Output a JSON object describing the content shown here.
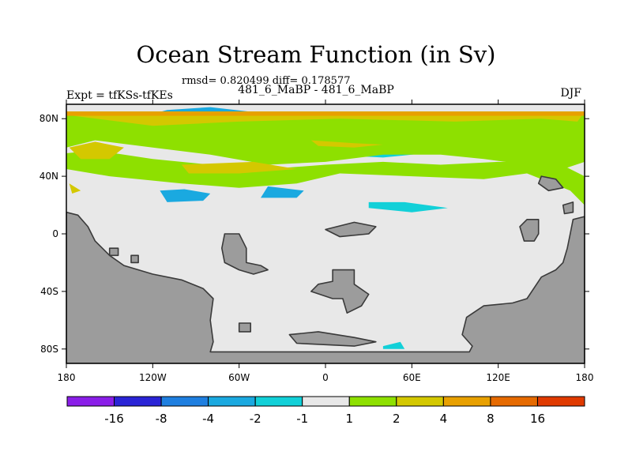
{
  "chart_data": {
    "type": "heatmap",
    "title": "Ocean Stream Function (in Sv)",
    "stats": "rmsd= 0.820499 diff= 0.178577",
    "subtitle": "481_6_MaBP - 481_6_MaBP",
    "left_label": "Expt = tfKSs-tfKEs",
    "right_label": "DJF",
    "x_ticks": [
      {
        "value": -180,
        "label": "180"
      },
      {
        "value": -120,
        "label": "120W"
      },
      {
        "value": -60,
        "label": "60W"
      },
      {
        "value": 0,
        "label": "0"
      },
      {
        "value": 60,
        "label": "60E"
      },
      {
        "value": 120,
        "label": "120E"
      },
      {
        "value": 180,
        "label": "180"
      }
    ],
    "y_ticks": [
      {
        "value": 80,
        "label": "80N"
      },
      {
        "value": 40,
        "label": "40N"
      },
      {
        "value": 0,
        "label": "0"
      },
      {
        "value": -40,
        "label": "40S"
      },
      {
        "value": -80,
        "label": "80S"
      }
    ],
    "xlim": [
      -180,
      180
    ],
    "ylim": [
      -90,
      90
    ],
    "colorbar": {
      "boundaries": [
        "-16",
        "-8",
        "-4",
        "-2",
        "-1",
        "1",
        "2",
        "4",
        "8",
        "16"
      ],
      "colors": [
        "#8a1ee8",
        "#2a24d6",
        "#1f7fe0",
        "#1aa9e0",
        "#12d0d8",
        "#e8e8e8",
        "#8ee000",
        "#d4c800",
        "#e8a000",
        "#e66a00",
        "#e03a00"
      ]
    },
    "fields": [
      {
        "level": "-4",
        "polygons": [
          [
            [
              -125,
              82
            ],
            [
              -110,
              86
            ],
            [
              -80,
              88
            ],
            [
              -45,
              84
            ],
            [
              -40,
              78
            ],
            [
              -60,
              72
            ],
            [
              -95,
              70
            ],
            [
              -118,
              74
            ]
          ],
          [
            [
              -115,
              30
            ],
            [
              -98,
              31
            ],
            [
              -80,
              28
            ],
            [
              -85,
              23
            ],
            [
              -110,
              22
            ]
          ],
          [
            [
              -40,
              33
            ],
            [
              -15,
              30
            ],
            [
              -20,
              25
            ],
            [
              -45,
              25
            ]
          ]
        ]
      },
      {
        "level": "-2",
        "polygons": [
          [
            [
              -75,
              60
            ],
            [
              -20,
              56
            ],
            [
              40,
              53
            ],
            [
              60,
              55
            ],
            [
              90,
              58
            ],
            [
              120,
              60
            ],
            [
              100,
              63
            ],
            [
              60,
              68
            ],
            [
              20,
              70
            ],
            [
              -20,
              72
            ],
            [
              -60,
              68
            ]
          ],
          [
            [
              -55,
              43
            ],
            [
              -25,
              42
            ],
            [
              -10,
              38
            ],
            [
              -45,
              36
            ]
          ],
          [
            [
              30,
              22
            ],
            [
              55,
              22
            ],
            [
              85,
              18
            ],
            [
              60,
              15
            ],
            [
              30,
              18
            ]
          ],
          [
            [
              40,
              -78
            ],
            [
              52,
              -75
            ],
            [
              55,
              -80
            ],
            [
              40,
              -80
            ]
          ]
        ]
      },
      {
        "level": "1",
        "polygons": [
          [
            [
              -180,
              85
            ],
            [
              180,
              85
            ],
            [
              180,
              50
            ],
            [
              165,
              45
            ],
            [
              140,
              48
            ],
            [
              110,
              52
            ],
            [
              80,
              55
            ],
            [
              40,
              55
            ],
            [
              0,
              50
            ],
            [
              -40,
              48
            ],
            [
              -80,
              55
            ],
            [
              -120,
              60
            ],
            [
              -160,
              65
            ],
            [
              -180,
              60
            ]
          ],
          [
            [
              -180,
              45
            ],
            [
              -150,
              40
            ],
            [
              -100,
              35
            ],
            [
              -60,
              32
            ],
            [
              -20,
              35
            ],
            [
              10,
              42
            ],
            [
              60,
              40
            ],
            [
              110,
              38
            ],
            [
              140,
              42
            ],
            [
              170,
              30
            ],
            [
              180,
              20
            ],
            [
              180,
              40
            ],
            [
              160,
              50
            ],
            [
              120,
              50
            ],
            [
              80,
              48
            ],
            [
              40,
              50
            ],
            [
              0,
              48
            ],
            [
              -40,
              45
            ],
            [
              -80,
              48
            ],
            [
              -120,
              52
            ],
            [
              -160,
              58
            ],
            [
              -180,
              56
            ]
          ],
          [
            [
              -140,
              -26
            ],
            [
              -135,
              -30
            ],
            [
              -138,
              -32
            ]
          ]
        ]
      },
      {
        "level": "2",
        "polygons": [
          [
            [
              -175,
              82
            ],
            [
              -120,
              75
            ],
            [
              -60,
              78
            ],
            [
              10,
              80
            ],
            [
              90,
              78
            ],
            [
              150,
              80
            ],
            [
              175,
              78
            ],
            [
              178,
              82
            ],
            [
              120,
              84
            ],
            [
              0,
              84
            ],
            [
              -120,
              84
            ]
          ],
          [
            [
              -178,
              60
            ],
            [
              -170,
              52
            ],
            [
              -150,
              52
            ],
            [
              -140,
              60
            ],
            [
              -160,
              64
            ]
          ],
          [
            [
              -100,
              48
            ],
            [
              -50,
              50
            ],
            [
              -20,
              45
            ],
            [
              -60,
              42
            ],
            [
              -95,
              42
            ]
          ],
          [
            [
              -10,
              65
            ],
            [
              20,
              63
            ],
            [
              40,
              62
            ],
            [
              20,
              60
            ],
            [
              -5,
              61
            ]
          ],
          [
            [
              -178,
              35
            ],
            [
              -170,
              30
            ],
            [
              -176,
              28
            ]
          ]
        ]
      },
      {
        "level": "4",
        "polygons": [
          [
            [
              -180,
              85
            ],
            [
              180,
              85
            ],
            [
              180,
              82
            ],
            [
              -180,
              82
            ]
          ]
        ]
      }
    ],
    "land": [
      [
        [
          -180,
          -90
        ],
        [
          -180,
          15
        ],
        [
          -172,
          13
        ],
        [
          -165,
          5
        ],
        [
          -160,
          -5
        ],
        [
          -150,
          -15
        ],
        [
          -140,
          -22
        ],
        [
          -120,
          -28
        ],
        [
          -100,
          -32
        ],
        [
          -85,
          -38
        ],
        [
          -78,
          -45
        ],
        [
          -80,
          -60
        ],
        [
          -78,
          -75
        ],
        [
          -80,
          -82
        ],
        [
          -60,
          -82
        ],
        [
          0,
          -82
        ],
        [
          60,
          -82
        ],
        [
          100,
          -82
        ],
        [
          102,
          -78
        ],
        [
          95,
          -70
        ],
        [
          98,
          -58
        ],
        [
          110,
          -50
        ],
        [
          130,
          -48
        ],
        [
          140,
          -45
        ],
        [
          150,
          -30
        ],
        [
          160,
          -25
        ],
        [
          165,
          -20
        ],
        [
          168,
          -10
        ],
        [
          170,
          0
        ],
        [
          172,
          10
        ],
        [
          180,
          12
        ],
        [
          180,
          -90
        ]
      ],
      [
        [
          -70,
          0
        ],
        [
          -60,
          0
        ],
        [
          -55,
          -10
        ],
        [
          -55,
          -20
        ],
        [
          -45,
          -22
        ],
        [
          -40,
          -25
        ],
        [
          -50,
          -28
        ],
        [
          -60,
          -25
        ],
        [
          -70,
          -20
        ],
        [
          -72,
          -10
        ]
      ],
      [
        [
          5,
          -25
        ],
        [
          20,
          -25
        ],
        [
          20,
          -35
        ],
        [
          30,
          -42
        ],
        [
          25,
          -50
        ],
        [
          15,
          -55
        ],
        [
          12,
          -45
        ],
        [
          5,
          -45
        ],
        [
          -10,
          -40
        ],
        [
          -5,
          -35
        ],
        [
          5,
          -33
        ]
      ],
      [
        [
          140,
          10
        ],
        [
          148,
          10
        ],
        [
          148,
          0
        ],
        [
          145,
          -5
        ],
        [
          138,
          -5
        ],
        [
          135,
          5
        ]
      ],
      [
        [
          0,
          3
        ],
        [
          20,
          8
        ],
        [
          35,
          5
        ],
        [
          30,
          0
        ],
        [
          10,
          -2
        ]
      ],
      [
        [
          -150,
          -10
        ],
        [
          -144,
          -10
        ],
        [
          -144,
          -15
        ],
        [
          -150,
          -15
        ]
      ],
      [
        [
          -135,
          -15
        ],
        [
          -130,
          -15
        ],
        [
          -130,
          -20
        ],
        [
          -135,
          -20
        ]
      ],
      [
        [
          -60,
          -62
        ],
        [
          -52,
          -62
        ],
        [
          -52,
          -68
        ],
        [
          -60,
          -68
        ]
      ],
      [
        [
          -25,
          -70
        ],
        [
          -5,
          -68
        ],
        [
          20,
          -72
        ],
        [
          35,
          -75
        ],
        [
          20,
          -78
        ],
        [
          -20,
          -76
        ]
      ],
      [
        [
          150,
          40
        ],
        [
          160,
          38
        ],
        [
          165,
          32
        ],
        [
          155,
          30
        ],
        [
          148,
          35
        ]
      ],
      [
        [
          165,
          20
        ],
        [
          172,
          22
        ],
        [
          172,
          15
        ],
        [
          166,
          14
        ]
      ]
    ]
  }
}
